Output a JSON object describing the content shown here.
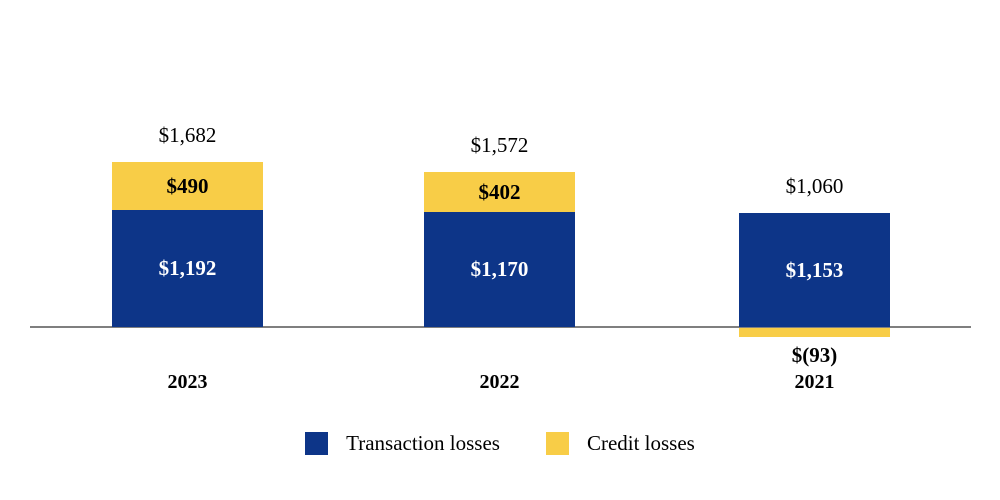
{
  "chart_data": {
    "type": "bar",
    "stacked": true,
    "orientation": "vertical",
    "title": "",
    "xlabel": "",
    "ylabel": "",
    "categories": [
      "2023",
      "2022",
      "2021"
    ],
    "series": [
      {
        "name": "Transaction losses",
        "color": "#0D3588",
        "values": [
          1192,
          1170,
          1153
        ],
        "labels": [
          "$1,192",
          "$1,170",
          "$1,153"
        ]
      },
      {
        "name": "Credit losses",
        "color": "#F8CD47",
        "values": [
          490,
          402,
          -93
        ],
        "labels": [
          "$490",
          "$402",
          "$(93)"
        ]
      }
    ],
    "totals": {
      "values": [
        1682,
        1572,
        1060
      ],
      "labels": [
        "$1,682",
        "$1,572",
        "$1,060"
      ]
    },
    "ylim": [
      -93,
      1682
    ],
    "grid": false,
    "legend_position": "bottom"
  },
  "legend": {
    "items": [
      {
        "label": "Transaction losses",
        "color": "#0D3588"
      },
      {
        "label": "Credit losses",
        "color": "#F8CD47"
      }
    ]
  },
  "colors": {
    "transaction": "#0D3588",
    "credit": "#F8CD47",
    "axis": "#7F7F7F",
    "bar_label_light": "#FFFFFF",
    "text": "#000000",
    "background": "#FFFFFF"
  }
}
